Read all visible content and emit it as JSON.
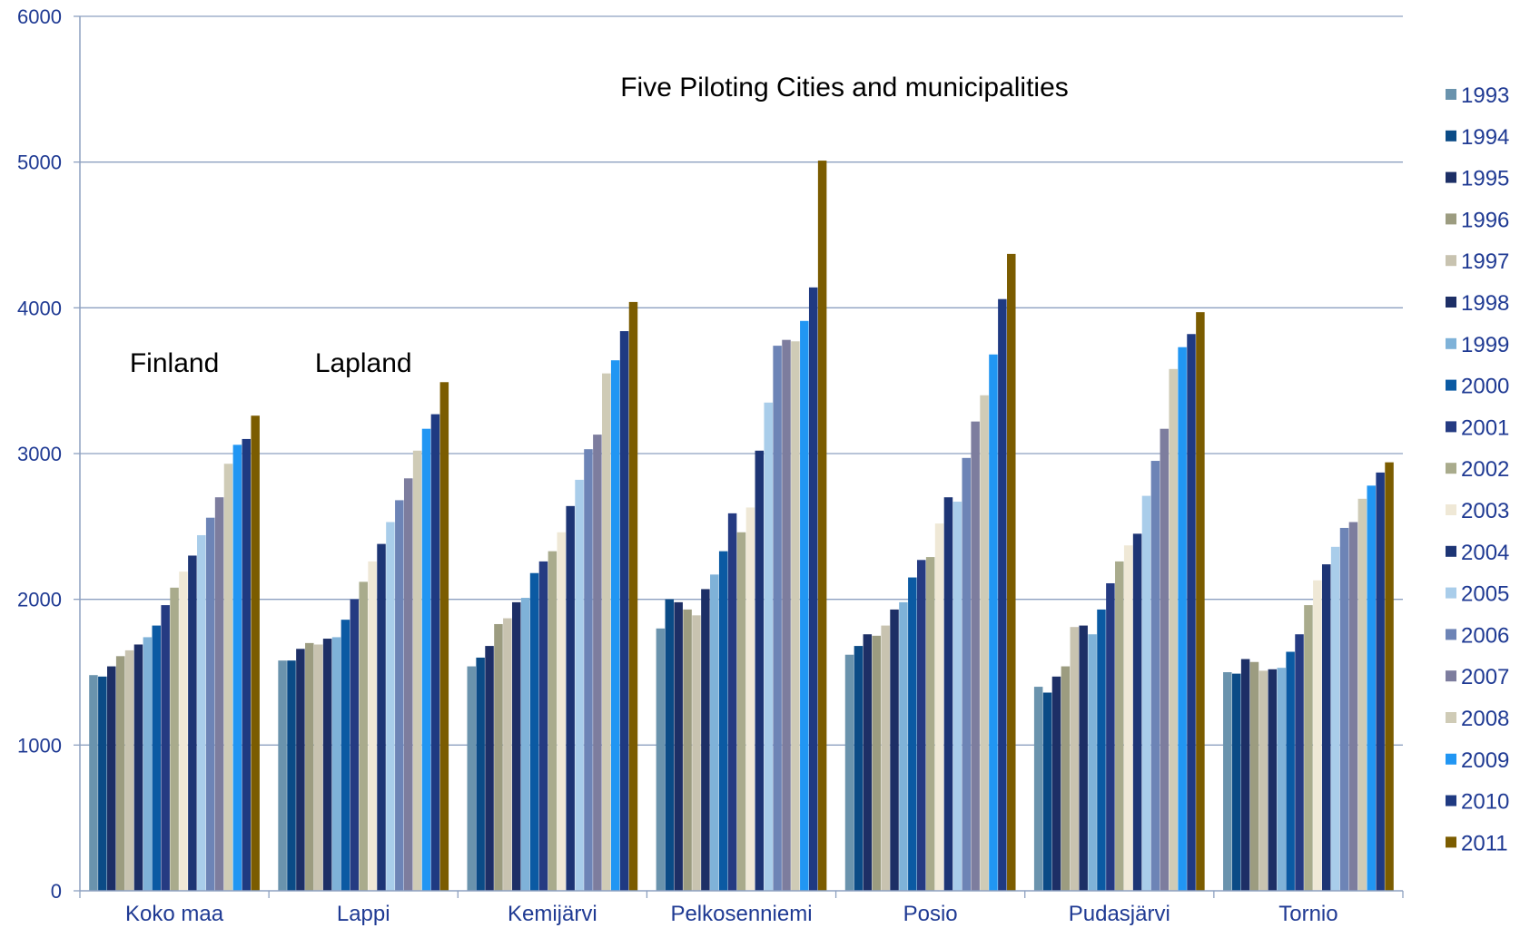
{
  "chart_data": {
    "type": "bar",
    "title": "",
    "xlabel": "",
    "ylabel": "",
    "ylim": [
      0,
      6000
    ],
    "yticks": [
      0,
      1000,
      2000,
      3000,
      4000,
      5000,
      6000
    ],
    "grid": true,
    "legend_position": "right",
    "categories": [
      "Koko maa",
      "Lappi",
      "Kemijärvi",
      "Pelkosenniemi",
      "Posio",
      "Pudasjärvi",
      "Tornio"
    ],
    "annotations": [
      {
        "text": "Finland",
        "category": "Koko maa"
      },
      {
        "text": "Lapland",
        "category": "Lappi"
      },
      {
        "text": "Five Piloting Cities and municipalities",
        "category": "Pelkosenniemi"
      }
    ],
    "series": [
      {
        "name": "1993",
        "color": "#6a93ad",
        "values": [
          1480,
          1580,
          1540,
          1800,
          1620,
          1400,
          1500
        ]
      },
      {
        "name": "1994",
        "color": "#0b4b86",
        "values": [
          1470,
          1580,
          1600,
          2000,
          1680,
          1360,
          1490
        ]
      },
      {
        "name": "1995",
        "color": "#1d2f66",
        "values": [
          1540,
          1660,
          1680,
          1980,
          1760,
          1470,
          1590
        ]
      },
      {
        "name": "1996",
        "color": "#9c9c80",
        "values": [
          1610,
          1700,
          1830,
          1930,
          1750,
          1540,
          1570
        ]
      },
      {
        "name": "1997",
        "color": "#c8c3b0",
        "values": [
          1650,
          1690,
          1870,
          1890,
          1820,
          1810,
          1510
        ]
      },
      {
        "name": "1998",
        "color": "#1d2f66",
        "values": [
          1690,
          1730,
          1980,
          2070,
          1930,
          1820,
          1520
        ]
      },
      {
        "name": "1999",
        "color": "#7fb2d8",
        "values": [
          1740,
          1740,
          2010,
          2170,
          1980,
          1760,
          1530
        ]
      },
      {
        "name": "2000",
        "color": "#0b5aa3",
        "values": [
          1820,
          1860,
          2180,
          2330,
          2150,
          1930,
          1640
        ]
      },
      {
        "name": "2001",
        "color": "#253b82",
        "values": [
          1960,
          2000,
          2260,
          2590,
          2270,
          2110,
          1760
        ]
      },
      {
        "name": "2002",
        "color": "#a9ab8c",
        "values": [
          2080,
          2120,
          2330,
          2460,
          2290,
          2260,
          1960
        ]
      },
      {
        "name": "2003",
        "color": "#efe8d6",
        "values": [
          2190,
          2260,
          2460,
          2630,
          2520,
          2370,
          2130
        ]
      },
      {
        "name": "2004",
        "color": "#1d3575",
        "values": [
          2300,
          2380,
          2640,
          3020,
          2700,
          2450,
          2240
        ]
      },
      {
        "name": "2005",
        "color": "#a9cdea",
        "values": [
          2440,
          2530,
          2820,
          3350,
          2670,
          2710,
          2360
        ]
      },
      {
        "name": "2006",
        "color": "#6d84b6",
        "values": [
          2560,
          2680,
          3030,
          3740,
          2970,
          2950,
          2490
        ]
      },
      {
        "name": "2007",
        "color": "#7d7d9e",
        "values": [
          2700,
          2830,
          3130,
          3780,
          3220,
          3170,
          2530
        ]
      },
      {
        "name": "2008",
        "color": "#cfcbb6",
        "values": [
          2930,
          3020,
          3550,
          3770,
          3400,
          3580,
          2690
        ]
      },
      {
        "name": "2009",
        "color": "#2196f3",
        "values": [
          3060,
          3170,
          3640,
          3910,
          3680,
          3730,
          2780
        ]
      },
      {
        "name": "2010",
        "color": "#1f3a82",
        "values": [
          3100,
          3270,
          3840,
          4140,
          4060,
          3820,
          2870
        ]
      },
      {
        "name": "2011",
        "color": "#7b5c00",
        "values": [
          3260,
          3490,
          4040,
          5010,
          4370,
          3970,
          2940
        ]
      }
    ]
  }
}
